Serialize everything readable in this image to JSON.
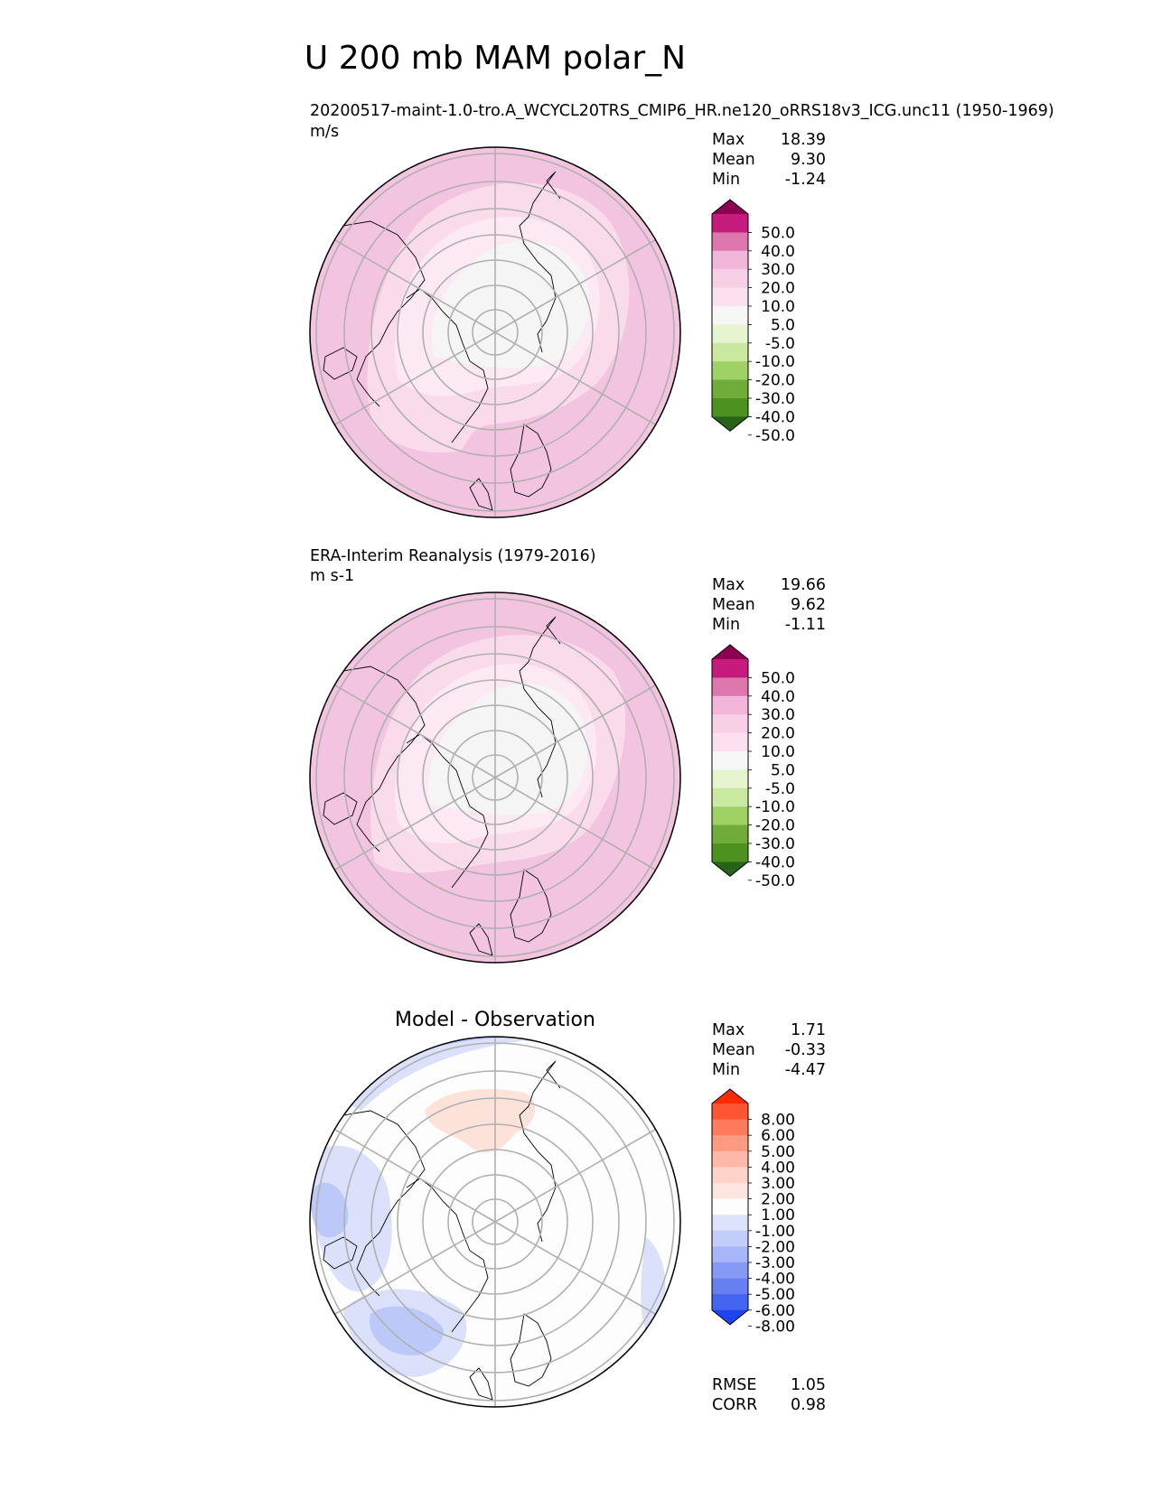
{
  "chart_data": {
    "type": "polar_contour_panels",
    "title": "U 200 mb MAM polar_N",
    "projection": "North Polar Stereographic",
    "panels": [
      {
        "id": "test",
        "title_left": "20200517-maint-1.0-tro.A_WCYCL20TRS_CMIP6_HR.ne120_oRRS18v3_ICG.unc11 (1950-1969)",
        "units": "m/s",
        "stats": [
          {
            "label": "Max",
            "value": "18.39"
          },
          {
            "label": "Mean",
            "value": "9.30"
          },
          {
            "label": "Min",
            "value": "-1.24"
          }
        ],
        "colorbar": {
          "labels": [
            "50.0",
            "40.0",
            "30.0",
            "20.0",
            "10.0",
            "5.0",
            "-5.0",
            "-10.0",
            "-20.0",
            "-30.0",
            "-40.0",
            "-50.0"
          ],
          "colors": [
            "#8e0152",
            "#c51b7d",
            "#de77ae",
            "#f1b6da",
            "#f7d0e6",
            "#fde0ef",
            "#f7f7f7",
            "#e6f5d0",
            "#c9e8a0",
            "#a0d165",
            "#6fac3a",
            "#4d9221",
            "#276419"
          ]
        },
        "field": {
          "outer": "#f2c4df",
          "ring2": "#fadbeb",
          "ring3": "#fde9f3",
          "center": "#f5f5f5"
        }
      },
      {
        "id": "reference",
        "title_left": "ERA-Interim Reanalysis (1979-2016)",
        "units": "m s-1",
        "stats": [
          {
            "label": "Max",
            "value": "19.66"
          },
          {
            "label": "Mean",
            "value": "9.62"
          },
          {
            "label": "Min",
            "value": "-1.11"
          }
        ],
        "colorbar": {
          "labels": [
            "50.0",
            "40.0",
            "30.0",
            "20.0",
            "10.0",
            "5.0",
            "-5.0",
            "-10.0",
            "-20.0",
            "-30.0",
            "-40.0",
            "-50.0"
          ],
          "colors": [
            "#8e0152",
            "#c51b7d",
            "#de77ae",
            "#f1b6da",
            "#f7d0e6",
            "#fde0ef",
            "#f7f7f7",
            "#e6f5d0",
            "#c9e8a0",
            "#a0d165",
            "#6fac3a",
            "#4d9221",
            "#276419"
          ]
        },
        "field": {
          "outer": "#f2c4df",
          "ring2": "#fadbeb",
          "ring3": "#fde9f3",
          "center": "#f5f5f5"
        }
      },
      {
        "id": "diff",
        "title_center": "Model - Observation",
        "stats": [
          {
            "label": "Max",
            "value": "1.71"
          },
          {
            "label": "Mean",
            "value": "-0.33"
          },
          {
            "label": "Min",
            "value": "-4.47"
          }
        ],
        "metrics": [
          {
            "label": "RMSE",
            "value": "1.05"
          },
          {
            "label": "CORR",
            "value": "0.98"
          }
        ],
        "colorbar": {
          "labels": [
            "8.00",
            "6.00",
            "5.00",
            "4.00",
            "3.00",
            "2.00",
            "1.00",
            "-1.00",
            "-2.00",
            "-3.00",
            "-4.00",
            "-5.00",
            "-6.00",
            "-8.00"
          ],
          "colors": [
            "#ff2a00",
            "#ff5533",
            "#ff7a5c",
            "#ff9a82",
            "#ffb8a6",
            "#ffd3c8",
            "#fde6df",
            "#fdfdfd",
            "#dde3fb",
            "#c3cdfa",
            "#a6b6f8",
            "#869af5",
            "#6680f2",
            "#4465f0",
            "#1e44ef"
          ]
        },
        "field": {
          "outer": "#fdfdfd",
          "blue1": "#dbe1fb",
          "blue2": "#bcc8f8",
          "red1": "#fde2da"
        }
      }
    ]
  }
}
